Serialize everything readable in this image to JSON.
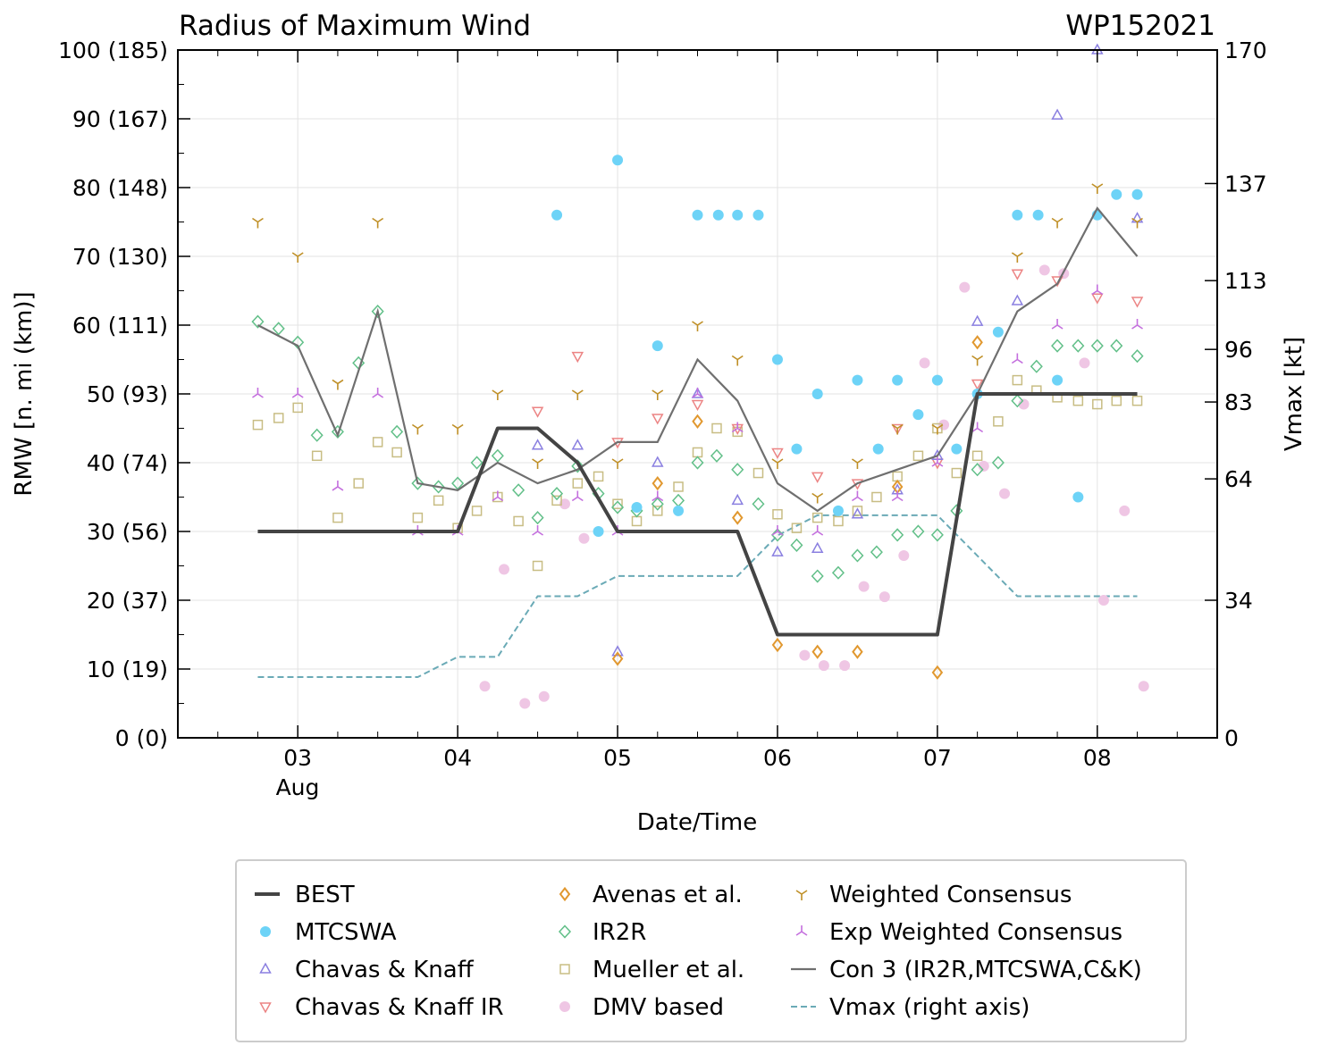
{
  "chart_data": {
    "type": "scatter",
    "title": "Radius of Maximum Wind",
    "storm_id": "WP152021",
    "xlabel": "Date/Time",
    "ylabel": "RMW [n. mi (km)]",
    "ylabel_right": "Vmax [kt]",
    "xlim": [
      2.25,
      8.75
    ],
    "ylim": [
      0,
      100
    ],
    "xticks": [
      {
        "x": 3,
        "label": "03"
      },
      {
        "x": 4,
        "label": "04"
      },
      {
        "x": 5,
        "label": "05"
      },
      {
        "x": 6,
        "label": "06"
      },
      {
        "x": 7,
        "label": "07"
      },
      {
        "x": 8,
        "label": "08"
      }
    ],
    "month_label": "Aug",
    "yticks_left": [
      {
        "v": 0,
        "label": "0 (0)"
      },
      {
        "v": 10,
        "label": "10 (19)"
      },
      {
        "v": 20,
        "label": "20 (37)"
      },
      {
        "v": 30,
        "label": "30 (56)"
      },
      {
        "v": 40,
        "label": "40 (74)"
      },
      {
        "v": 50,
        "label": "50 (93)"
      },
      {
        "v": 60,
        "label": "60 (111)"
      },
      {
        "v": 70,
        "label": "70 (130)"
      },
      {
        "v": 80,
        "label": "80 (148)"
      },
      {
        "v": 90,
        "label": "90 (167)"
      },
      {
        "v": 100,
        "label": "100 (185)"
      }
    ],
    "right_axis": {
      "vmax_max": 170,
      "ticks": [
        {
          "kt": 0,
          "label": "0"
        },
        {
          "kt": 34,
          "label": "34"
        },
        {
          "kt": 64,
          "label": "64"
        },
        {
          "kt": 83,
          "label": "83"
        },
        {
          "kt": 96,
          "label": "96"
        },
        {
          "kt": 113,
          "label": "113"
        },
        {
          "kt": 137,
          "label": "137"
        },
        {
          "kt": 170,
          "label": "170"
        }
      ]
    },
    "legend": [
      {
        "key": "best",
        "label": "BEST"
      },
      {
        "key": "mtcswa",
        "label": "MTCSWA"
      },
      {
        "key": "ck",
        "label": "Chavas & Knaff"
      },
      {
        "key": "ckir",
        "label": "Chavas & Knaff IR"
      },
      {
        "key": "avenas",
        "label": "Avenas et al."
      },
      {
        "key": "ir2r",
        "label": "IR2R"
      },
      {
        "key": "mueller",
        "label": "Mueller et al."
      },
      {
        "key": "dmv",
        "label": "DMV based"
      },
      {
        "key": "wc",
        "label": "Weighted Consensus"
      },
      {
        "key": "ewc",
        "label": "Exp Weighted Consensus"
      },
      {
        "key": "con3",
        "label": "Con 3 (IR2R,MTCSWA,C&K)"
      },
      {
        "key": "vmax",
        "label": "Vmax (right axis)"
      }
    ],
    "colors": {
      "best": "#444444",
      "mtcswa": "#6dd3f7",
      "ck": "#8a7fe0",
      "ckir": "#ec8484",
      "avenas": "#e1982f",
      "ir2r": "#61bf88",
      "mueller": "#c8bd84",
      "dmv": "#efc6e4",
      "wc": "#bf8f26",
      "ewc": "#c46fde",
      "con3": "#6f6f6f",
      "vmax": "#6aaab6"
    },
    "series": {
      "best": [
        [
          2.75,
          30
        ],
        [
          3,
          30
        ],
        [
          3.25,
          30
        ],
        [
          3.5,
          30
        ],
        [
          3.75,
          30
        ],
        [
          4,
          30
        ],
        [
          4.25,
          45
        ],
        [
          4.5,
          45
        ],
        [
          4.75,
          40
        ],
        [
          5,
          30
        ],
        [
          5.25,
          30
        ],
        [
          5.5,
          30
        ],
        [
          5.75,
          30
        ],
        [
          6,
          15
        ],
        [
          6.25,
          15
        ],
        [
          6.5,
          15
        ],
        [
          6.75,
          15
        ],
        [
          7,
          15
        ],
        [
          7.25,
          50
        ],
        [
          7.5,
          50
        ],
        [
          7.75,
          50
        ],
        [
          8,
          50
        ],
        [
          8.25,
          50
        ]
      ],
      "vmax": [
        [
          2.75,
          15
        ],
        [
          3,
          15
        ],
        [
          3.25,
          15
        ],
        [
          3.5,
          15
        ],
        [
          3.75,
          15
        ],
        [
          4,
          20
        ],
        [
          4.25,
          20
        ],
        [
          4.5,
          35
        ],
        [
          4.75,
          35
        ],
        [
          5,
          40
        ],
        [
          5.25,
          40
        ],
        [
          5.5,
          40
        ],
        [
          5.75,
          40
        ],
        [
          6,
          50
        ],
        [
          6.25,
          55
        ],
        [
          6.5,
          55
        ],
        [
          6.75,
          55
        ],
        [
          7,
          55
        ],
        [
          7.25,
          45
        ],
        [
          7.5,
          35
        ],
        [
          7.75,
          35
        ],
        [
          8,
          35
        ],
        [
          8.25,
          35
        ]
      ],
      "con3": [
        [
          2.75,
          60
        ],
        [
          3,
          57
        ],
        [
          3.25,
          44
        ],
        [
          3.5,
          62
        ],
        [
          3.75,
          37
        ],
        [
          4,
          36
        ],
        [
          4.25,
          40
        ],
        [
          4.5,
          37
        ],
        [
          4.75,
          39
        ],
        [
          5,
          43
        ],
        [
          5.25,
          43
        ],
        [
          5.5,
          55
        ],
        [
          5.75,
          49
        ],
        [
          6,
          37
        ],
        [
          6.25,
          33
        ],
        [
          6.5,
          37
        ],
        [
          6.75,
          39
        ],
        [
          7,
          41
        ],
        [
          7.25,
          50
        ],
        [
          7.5,
          62
        ],
        [
          7.75,
          66
        ],
        [
          8,
          77
        ],
        [
          8.25,
          70
        ]
      ],
      "mtcswa": [
        [
          4.62,
          76
        ],
        [
          4.88,
          30
        ],
        [
          5,
          84
        ],
        [
          5.12,
          33.5
        ],
        [
          5.25,
          57
        ],
        [
          5.38,
          33
        ],
        [
          5.5,
          76
        ],
        [
          5.63,
          76
        ],
        [
          5.75,
          76
        ],
        [
          5.88,
          76
        ],
        [
          6,
          55
        ],
        [
          6.12,
          42
        ],
        [
          6.25,
          50
        ],
        [
          6.38,
          33
        ],
        [
          6.5,
          52
        ],
        [
          6.63,
          42
        ],
        [
          6.75,
          52
        ],
        [
          6.88,
          47
        ],
        [
          7,
          52
        ],
        [
          7.12,
          42
        ],
        [
          7.25,
          50
        ],
        [
          7.38,
          59
        ],
        [
          7.5,
          76
        ],
        [
          7.63,
          76
        ],
        [
          7.75,
          52
        ],
        [
          7.88,
          35
        ],
        [
          8,
          76
        ],
        [
          8.12,
          79
        ],
        [
          8.25,
          79
        ]
      ],
      "ck": [
        [
          4.5,
          42.5
        ],
        [
          4.75,
          42.5
        ],
        [
          5,
          12.5
        ],
        [
          5.25,
          40
        ],
        [
          5.5,
          50
        ],
        [
          5.75,
          34.5
        ],
        [
          6,
          27
        ],
        [
          6.25,
          27.5
        ],
        [
          6.5,
          32.5
        ],
        [
          6.75,
          36
        ],
        [
          7,
          41
        ],
        [
          7.25,
          60.5
        ],
        [
          7.5,
          63.5
        ],
        [
          7.75,
          90.5
        ],
        [
          8,
          100
        ],
        [
          8.25,
          75.5
        ]
      ],
      "ckir": [
        [
          4.5,
          47.5
        ],
        [
          4.75,
          55.5
        ],
        [
          5,
          43
        ],
        [
          5.25,
          46.5
        ],
        [
          5.5,
          48.5
        ],
        [
          5.75,
          45
        ],
        [
          6,
          41.5
        ],
        [
          6.25,
          38
        ],
        [
          6.5,
          37
        ],
        [
          6.75,
          45
        ],
        [
          7,
          40
        ],
        [
          7.25,
          51.5
        ],
        [
          7.5,
          67.5
        ],
        [
          7.75,
          66.5
        ],
        [
          8,
          64
        ],
        [
          8.25,
          63.5
        ]
      ],
      "avenas": [
        [
          5,
          11.5
        ],
        [
          5.25,
          37
        ],
        [
          5.5,
          46
        ],
        [
          5.75,
          32
        ],
        [
          6,
          13.5
        ],
        [
          6.25,
          12.5
        ],
        [
          6.5,
          12.5
        ],
        [
          6.75,
          36.5
        ],
        [
          7,
          9.5
        ],
        [
          7.25,
          57.5
        ]
      ],
      "ir2r": [
        [
          2.75,
          60.5
        ],
        [
          2.88,
          59.5
        ],
        [
          3,
          57.5
        ],
        [
          3.12,
          44
        ],
        [
          3.25,
          44.5
        ],
        [
          3.38,
          54.5
        ],
        [
          3.5,
          62
        ],
        [
          3.62,
          44.5
        ],
        [
          3.75,
          37
        ],
        [
          3.88,
          36.5
        ],
        [
          4,
          37
        ],
        [
          4.12,
          40
        ],
        [
          4.25,
          41
        ],
        [
          4.38,
          36
        ],
        [
          4.5,
          32
        ],
        [
          4.62,
          35.5
        ],
        [
          4.75,
          39.5
        ],
        [
          4.88,
          35.5
        ],
        [
          5,
          33.5
        ],
        [
          5.12,
          33
        ],
        [
          5.25,
          34
        ],
        [
          5.38,
          34.5
        ],
        [
          5.5,
          40
        ],
        [
          5.62,
          41
        ],
        [
          5.75,
          39
        ],
        [
          5.88,
          34
        ],
        [
          6,
          29.5
        ],
        [
          6.12,
          28
        ],
        [
          6.25,
          23.5
        ],
        [
          6.38,
          24
        ],
        [
          6.5,
          26.5
        ],
        [
          6.62,
          27
        ],
        [
          6.75,
          29.5
        ],
        [
          6.88,
          30
        ],
        [
          7,
          29.5
        ],
        [
          7.12,
          33
        ],
        [
          7.25,
          39
        ],
        [
          7.38,
          40
        ],
        [
          7.5,
          49
        ],
        [
          7.62,
          54
        ],
        [
          7.75,
          57
        ],
        [
          7.88,
          57
        ],
        [
          8,
          57
        ],
        [
          8.12,
          57
        ],
        [
          8.25,
          55.5
        ]
      ],
      "mueller": [
        [
          2.75,
          45.5
        ],
        [
          2.88,
          46.5
        ],
        [
          3,
          48
        ],
        [
          3.12,
          41
        ],
        [
          3.25,
          32
        ],
        [
          3.38,
          37
        ],
        [
          3.5,
          43
        ],
        [
          3.62,
          41.5
        ],
        [
          3.75,
          32
        ],
        [
          3.88,
          34.5
        ],
        [
          4,
          30.5
        ],
        [
          4.12,
          33
        ],
        [
          4.25,
          35
        ],
        [
          4.38,
          31.5
        ],
        [
          4.5,
          25
        ],
        [
          4.62,
          34.5
        ],
        [
          4.75,
          37
        ],
        [
          4.88,
          38
        ],
        [
          5,
          34
        ],
        [
          5.12,
          31.5
        ],
        [
          5.25,
          33
        ],
        [
          5.38,
          36.5
        ],
        [
          5.5,
          41.5
        ],
        [
          5.62,
          45
        ],
        [
          5.75,
          44.5
        ],
        [
          5.88,
          38.5
        ],
        [
          6,
          32.5
        ],
        [
          6.12,
          30.5
        ],
        [
          6.25,
          32
        ],
        [
          6.38,
          31.5
        ],
        [
          6.5,
          33
        ],
        [
          6.62,
          35
        ],
        [
          6.75,
          38
        ],
        [
          6.88,
          41
        ],
        [
          7,
          45
        ],
        [
          7.12,
          38.5
        ],
        [
          7.25,
          41
        ],
        [
          7.38,
          46
        ],
        [
          7.5,
          52
        ],
        [
          7.62,
          50.5
        ],
        [
          7.75,
          49.5
        ],
        [
          7.88,
          49
        ],
        [
          8,
          48.5
        ],
        [
          8.12,
          49
        ],
        [
          8.25,
          49
        ]
      ],
      "dmv": [
        [
          4.17,
          7.5
        ],
        [
          4.29,
          24.5
        ],
        [
          4.42,
          5
        ],
        [
          4.54,
          6
        ],
        [
          4.67,
          34
        ],
        [
          4.79,
          29
        ],
        [
          6.17,
          12
        ],
        [
          6.29,
          10.5
        ],
        [
          6.42,
          10.5
        ],
        [
          6.54,
          22
        ],
        [
          6.67,
          20.5
        ],
        [
          6.79,
          26.5
        ],
        [
          6.92,
          54.5
        ],
        [
          7.04,
          45.5
        ],
        [
          7.17,
          65.5
        ],
        [
          7.29,
          39.5
        ],
        [
          7.42,
          35.5
        ],
        [
          7.54,
          48.5
        ],
        [
          7.67,
          68
        ],
        [
          7.79,
          67.5
        ],
        [
          7.92,
          54.5
        ],
        [
          8.04,
          20
        ],
        [
          8.17,
          33
        ],
        [
          8.29,
          7.5
        ]
      ],
      "wc": [
        [
          2.75,
          75
        ],
        [
          3,
          70
        ],
        [
          3.25,
          51.5
        ],
        [
          3.5,
          75
        ],
        [
          3.75,
          45
        ],
        [
          4,
          45
        ],
        [
          4.25,
          50
        ],
        [
          4.5,
          40
        ],
        [
          4.75,
          50
        ],
        [
          5,
          40
        ],
        [
          5.25,
          50
        ],
        [
          5.5,
          60
        ],
        [
          5.75,
          55
        ],
        [
          6,
          40
        ],
        [
          6.25,
          35
        ],
        [
          6.5,
          40
        ],
        [
          6.75,
          45
        ],
        [
          7,
          45
        ],
        [
          7.25,
          55
        ],
        [
          7.5,
          70
        ],
        [
          7.75,
          75
        ],
        [
          8,
          80
        ],
        [
          8.25,
          75
        ]
      ],
      "ewc": [
        [
          2.75,
          50
        ],
        [
          3,
          50
        ],
        [
          3.25,
          36.5
        ],
        [
          3.5,
          50
        ],
        [
          3.75,
          30
        ],
        [
          4,
          30
        ],
        [
          4.25,
          35
        ],
        [
          4.5,
          30
        ],
        [
          4.75,
          35
        ],
        [
          5,
          30
        ],
        [
          5.25,
          35
        ],
        [
          5.5,
          50
        ],
        [
          5.75,
          45
        ],
        [
          6,
          30
        ],
        [
          6.25,
          30
        ],
        [
          6.5,
          35
        ],
        [
          6.75,
          35
        ],
        [
          7,
          40
        ],
        [
          7.25,
          45
        ],
        [
          7.5,
          55
        ],
        [
          7.75,
          60
        ],
        [
          8,
          65
        ],
        [
          8.25,
          60
        ]
      ]
    }
  }
}
